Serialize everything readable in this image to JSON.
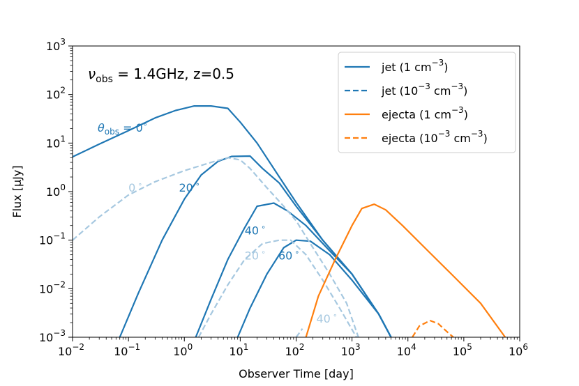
{
  "chart_data": {
    "type": "line",
    "xlabel": "Observer Time [day]",
    "ylabel": "Flux [μJy]",
    "xscale": "log",
    "yscale": "log",
    "xlim": [
      0.01,
      1000000
    ],
    "ylim": [
      0.001,
      1000
    ],
    "x_tick_labels": [
      {
        "base": "10",
        "exp": "−2",
        "value": 0.01
      },
      {
        "base": "10",
        "exp": "−1",
        "value": 0.1
      },
      {
        "base": "10",
        "exp": "0",
        "value": 1
      },
      {
        "base": "10",
        "exp": "1",
        "value": 10
      },
      {
        "base": "10",
        "exp": "2",
        "value": 100
      },
      {
        "base": "10",
        "exp": "3",
        "value": 1000
      },
      {
        "base": "10",
        "exp": "4",
        "value": 10000
      },
      {
        "base": "10",
        "exp": "5",
        "value": 100000
      },
      {
        "base": "10",
        "exp": "6",
        "value": 1000000
      }
    ],
    "y_tick_labels": [
      {
        "base": "10",
        "exp": "−3",
        "value": 0.001
      },
      {
        "base": "10",
        "exp": "−2",
        "value": 0.01
      },
      {
        "base": "10",
        "exp": "−1",
        "value": 0.1
      },
      {
        "base": "10",
        "exp": "0",
        "value": 1
      },
      {
        "base": "10",
        "exp": "1",
        "value": 10
      },
      {
        "base": "10",
        "exp": "2",
        "value": 100
      },
      {
        "base": "10",
        "exp": "3",
        "value": 1000
      }
    ],
    "annotation": {
      "nu": "ν",
      "nu_sub": "obs",
      "rest": " = 1.4GHz, z=0.5"
    },
    "theta_label": {
      "theta": "θ",
      "sub": "obs",
      "rest": " = 0",
      "deg": "∘"
    },
    "curve_labels": [
      {
        "text": "0",
        "deg": "∘",
        "color": "#a6c8e0",
        "x": 0.1,
        "y": 1.0
      },
      {
        "text": "20",
        "deg": "∘",
        "color": "#1f77b4",
        "x": 0.8,
        "y": 1.0
      },
      {
        "text": "40",
        "deg": "∘",
        "color": "#1f77b4",
        "x": 12,
        "y": 0.13
      },
      {
        "text": "20",
        "deg": "∘",
        "color": "#a6c8e0",
        "x": 12,
        "y": 0.04
      },
      {
        "text": "60",
        "deg": "∘",
        "color": "#1f77b4",
        "x": 48,
        "y": 0.04
      },
      {
        "text": "40",
        "deg": "∘",
        "color": "#a6c8e0",
        "x": 230,
        "y": 0.002
      }
    ],
    "legend": {
      "placement": "upper right",
      "entries": [
        {
          "label": "jet (1 cm",
          "sup": "−3",
          "tail": ")",
          "color": "#1f77b4",
          "dash": false
        },
        {
          "label": "jet (10",
          "sup": "−3",
          "mid": " cm",
          "sup2": "−3",
          "tail": ")",
          "color": "#1f77b4",
          "dash": true
        },
        {
          "label": "ejecta (1 cm",
          "sup": "−3",
          "tail": ")",
          "color": "#ff7f0e",
          "dash": false
        },
        {
          "label": "ejecta (10",
          "sup": "−3",
          "mid": " cm",
          "sup2": "−3",
          "tail": ")",
          "color": "#ff7f0e",
          "dash": true
        }
      ]
    },
    "series": [
      {
        "legend_ref": 0,
        "theta": 0,
        "color": "#1f77b4",
        "dash": false,
        "points": [
          [
            0.01,
            5.2
          ],
          [
            0.03,
            9.5
          ],
          [
            0.1,
            18
          ],
          [
            0.3,
            33
          ],
          [
            0.7,
            47
          ],
          [
            1.5,
            58
          ],
          [
            3,
            58
          ],
          [
            6,
            52
          ],
          [
            10,
            27
          ],
          [
            20,
            10
          ],
          [
            50,
            2
          ],
          [
            100,
            0.6
          ],
          [
            300,
            0.1
          ],
          [
            1000,
            0.02
          ],
          [
            3000,
            0.003
          ],
          [
            5000,
            0.001
          ]
        ]
      },
      {
        "legend_ref": 0,
        "theta": 20,
        "color": "#1f77b4",
        "dash": false,
        "points": [
          [
            0.07,
            0.001
          ],
          [
            0.15,
            0.008
          ],
          [
            0.4,
            0.1
          ],
          [
            1,
            0.7
          ],
          [
            2,
            2.2
          ],
          [
            4,
            4.2
          ],
          [
            7,
            5.3
          ],
          [
            15,
            5.4
          ],
          [
            25,
            3
          ],
          [
            50,
            1.5
          ],
          [
            100,
            0.5
          ],
          [
            300,
            0.1
          ],
          [
            1000,
            0.02
          ],
          [
            3000,
            0.003
          ],
          [
            5000,
            0.001
          ]
        ]
      },
      {
        "legend_ref": 0,
        "theta": 40,
        "color": "#1f77b4",
        "dash": false,
        "points": [
          [
            1.6,
            0.001
          ],
          [
            3,
            0.006
          ],
          [
            6,
            0.04
          ],
          [
            12,
            0.18
          ],
          [
            20,
            0.5
          ],
          [
            40,
            0.58
          ],
          [
            70,
            0.4
          ],
          [
            150,
            0.2
          ],
          [
            400,
            0.06
          ],
          [
            1000,
            0.02
          ],
          [
            3000,
            0.003
          ],
          [
            5000,
            0.001
          ]
        ]
      },
      {
        "legend_ref": 0,
        "theta": 60,
        "color": "#1f77b4",
        "dash": false,
        "points": [
          [
            9,
            0.001
          ],
          [
            15,
            0.004
          ],
          [
            30,
            0.02
          ],
          [
            60,
            0.07
          ],
          [
            100,
            0.1
          ],
          [
            180,
            0.095
          ],
          [
            400,
            0.05
          ],
          [
            1000,
            0.015
          ],
          [
            3000,
            0.003
          ],
          [
            5000,
            0.001
          ]
        ]
      },
      {
        "legend_ref": 1,
        "theta": 0,
        "color": "#a6c8e0",
        "dash": true,
        "points": [
          [
            0.01,
            0.1
          ],
          [
            0.03,
            0.3
          ],
          [
            0.1,
            0.85
          ],
          [
            0.3,
            1.6
          ],
          [
            1,
            2.7
          ],
          [
            3,
            4
          ],
          [
            6,
            5
          ],
          [
            10,
            4.5
          ],
          [
            15,
            3
          ],
          [
            30,
            1.2
          ],
          [
            60,
            0.5
          ],
          [
            100,
            0.25
          ],
          [
            200,
            0.07
          ],
          [
            400,
            0.02
          ],
          [
            800,
            0.005
          ],
          [
            1300,
            0.001
          ]
        ]
      },
      {
        "legend_ref": 1,
        "theta": 20,
        "color": "#a6c8e0",
        "dash": true,
        "points": [
          [
            1.8,
            0.001
          ],
          [
            3,
            0.003
          ],
          [
            6,
            0.012
          ],
          [
            12,
            0.04
          ],
          [
            25,
            0.085
          ],
          [
            50,
            0.1
          ],
          [
            80,
            0.1
          ],
          [
            150,
            0.05
          ],
          [
            300,
            0.015
          ],
          [
            600,
            0.004
          ],
          [
            1200,
            0.001
          ]
        ]
      },
      {
        "legend_ref": 1,
        "theta": 40,
        "color": "#a6c8e0",
        "dash": true,
        "points": [
          [
            100,
            0.001
          ],
          [
            130,
            0.0015
          ]
        ]
      },
      {
        "legend_ref": 2,
        "color": "#ff7f0e",
        "dash": false,
        "points": [
          [
            150,
            0.001
          ],
          [
            250,
            0.007
          ],
          [
            500,
            0.04
          ],
          [
            1000,
            0.2
          ],
          [
            1500,
            0.45
          ],
          [
            2500,
            0.55
          ],
          [
            4000,
            0.42
          ],
          [
            8000,
            0.2
          ],
          [
            20000,
            0.07
          ],
          [
            60000,
            0.02
          ],
          [
            200000,
            0.005
          ],
          [
            550000,
            0.001
          ]
        ]
      },
      {
        "legend_ref": 3,
        "color": "#ff7f0e",
        "dash": true,
        "points": [
          [
            12000,
            0.001
          ],
          [
            16000,
            0.0017
          ],
          [
            25000,
            0.0022
          ],
          [
            35000,
            0.0019
          ],
          [
            50000,
            0.0013
          ],
          [
            65000,
            0.001
          ]
        ]
      }
    ]
  }
}
